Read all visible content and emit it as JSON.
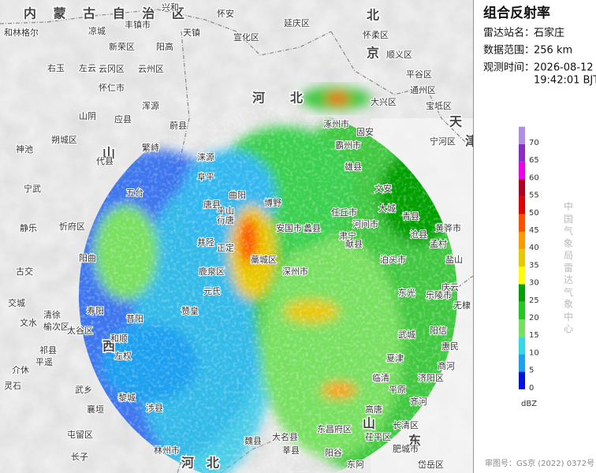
{
  "header": {
    "title": "组合反射率"
  },
  "info": [
    {
      "label": "雷达站名：",
      "value": "石家庄"
    },
    {
      "label": "数据范围：",
      "value": "256 km"
    },
    {
      "label": "观测时间：",
      "value": "2026-08-12",
      "value2": "19:42:01 BJT"
    }
  ],
  "legend": {
    "unit": "dBZ",
    "levels": [
      {
        "value": 70,
        "color": "#b08ee8"
      },
      {
        "value": 65,
        "color": "#8a2cc8"
      },
      {
        "value": 60,
        "color": "#ee00ee"
      },
      {
        "value": 55,
        "color": "#b00020"
      },
      {
        "value": 50,
        "color": "#e00000"
      },
      {
        "value": 45,
        "color": "#ff5000"
      },
      {
        "value": 40,
        "color": "#ff9a00"
      },
      {
        "value": 35,
        "color": "#e8c800"
      },
      {
        "value": 30,
        "color": "#ffff00"
      },
      {
        "value": 25,
        "color": "#00a000"
      },
      {
        "value": 20,
        "color": "#22c820"
      },
      {
        "value": 15,
        "color": "#78e060"
      },
      {
        "value": 10,
        "color": "#30d8e8"
      },
      {
        "value": 5,
        "color": "#1ea0f0"
      },
      {
        "value": 0,
        "color": "#0010e0"
      }
    ]
  },
  "side_note": "中国气象局雷达气象中心",
  "footer": "审图号：GS京 (2022) 0372号",
  "map": {
    "regions": [
      "内 蒙 古 自 治 区",
      "北",
      "京",
      "河",
      "北",
      "天",
      "山",
      "西",
      "河",
      "北",
      "山",
      "东",
      "津"
    ],
    "labels": [
      "和林格尔",
      "凉城",
      "兴和",
      "丰镇市",
      "天镇",
      "怀安",
      "宣化区",
      "阳高",
      "新荣区",
      "右玉",
      "左云",
      "云冈区",
      "云州区",
      "怀仁市",
      "浑源",
      "应县",
      "山阴",
      "朔城区",
      "神池",
      "代县",
      "繁峙",
      "五台",
      "宁武",
      "静乐",
      "忻府区",
      "阳曲",
      "古交",
      "清徐",
      "交城",
      "文水",
      "榆次区",
      "太谷区",
      "祁县",
      "平遥",
      "介休",
      "灵石",
      "寿阳",
      "昔阳",
      "和顺",
      "左权",
      "武乡",
      "襄垣",
      "黎城",
      "涉县",
      "屯留区",
      "长子",
      "林州市",
      "正定",
      "藁城区",
      "鹿泉区",
      "元氏",
      "赞皇",
      "深州市",
      "雄县",
      "霸州市",
      "固安",
      "涿州市",
      "大兴区",
      "献县",
      "河间市",
      "泊头市",
      "东光",
      "武城",
      "夏津",
      "临清",
      "高唐",
      "茌平区",
      "东阿",
      "长清区",
      "肥城市",
      "岱岳区",
      "大名县",
      "魏县",
      "莘县",
      "阳谷",
      "东昌府区",
      "乐陵市",
      "庆云",
      "盐山",
      "黄骅市",
      "无棣",
      "阳信",
      "惠民",
      "商河",
      "济阳区",
      "平原",
      "齐河",
      "宝坻区",
      "宁河区",
      "通州区",
      "顺义区",
      "怀柔区",
      "延庆区",
      "平谷区",
      "蔚县",
      "涞源",
      "阜平",
      "唐县",
      "曲阳",
      "行唐",
      "平山",
      "井陉",
      "安国市",
      "博野",
      "蠡县",
      "肃宁",
      "任丘市",
      "文安",
      "大城",
      "青县",
      "沧县",
      "孟村"
    ]
  }
}
